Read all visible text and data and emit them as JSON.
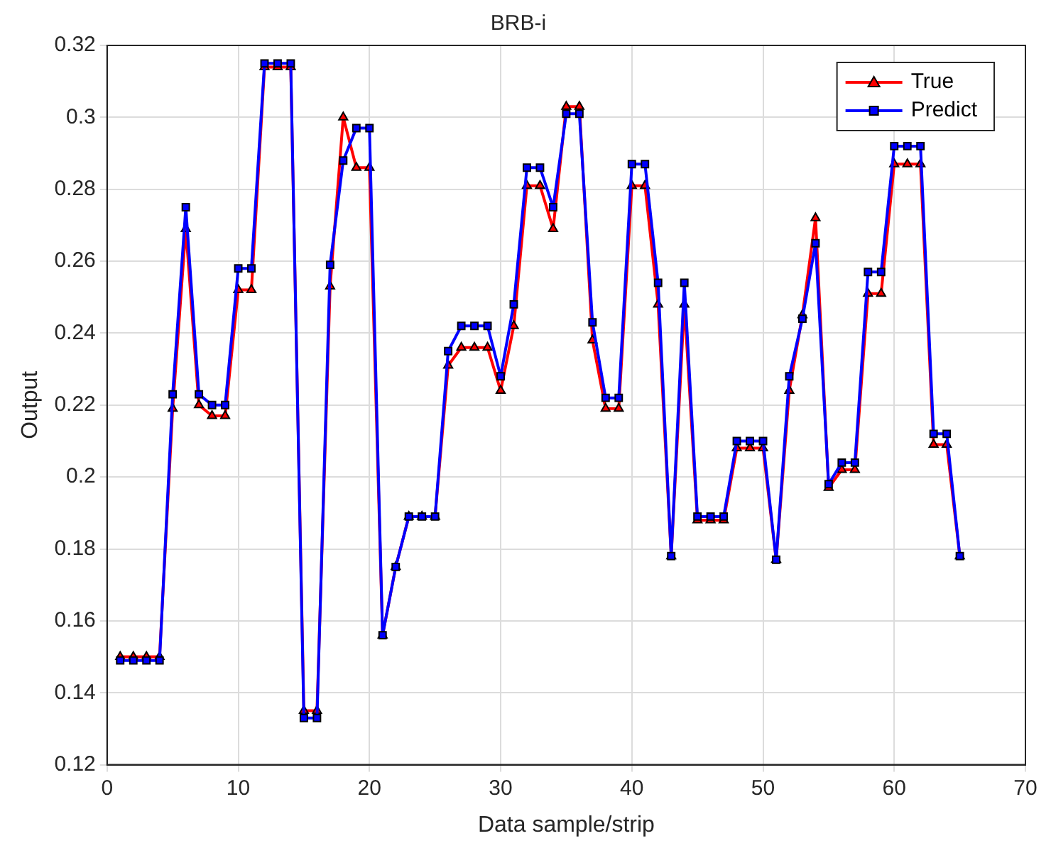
{
  "chart_data": {
    "type": "line",
    "title": "BRB-i",
    "xlabel": "Data sample/strip",
    "ylabel": "Output",
    "x": [
      1,
      2,
      3,
      4,
      5,
      6,
      7,
      8,
      9,
      10,
      11,
      12,
      13,
      14,
      15,
      16,
      17,
      18,
      19,
      20,
      21,
      22,
      23,
      24,
      25,
      26,
      27,
      28,
      29,
      30,
      31,
      32,
      33,
      34,
      35,
      36,
      37,
      38,
      39,
      40,
      41,
      42,
      43,
      44,
      45,
      46,
      47,
      48,
      49,
      50,
      51,
      52,
      53,
      54,
      55,
      56,
      57,
      58,
      59,
      60,
      61,
      62,
      63,
      64,
      65
    ],
    "series": [
      {
        "name": "True",
        "color": "#ff0000",
        "marker": "triangle",
        "values": [
          0.15,
          0.15,
          0.15,
          0.15,
          0.219,
          0.269,
          0.22,
          0.217,
          0.217,
          0.252,
          0.252,
          0.314,
          0.314,
          0.314,
          0.135,
          0.135,
          0.253,
          0.3,
          0.286,
          0.286,
          0.156,
          0.175,
          0.189,
          0.189,
          0.189,
          0.231,
          0.236,
          0.236,
          0.236,
          0.224,
          0.242,
          0.281,
          0.281,
          0.269,
          0.303,
          0.303,
          0.238,
          0.219,
          0.219,
          0.281,
          0.281,
          0.248,
          0.178,
          0.248,
          0.188,
          0.188,
          0.188,
          0.208,
          0.208,
          0.208,
          0.177,
          0.224,
          0.245,
          0.272,
          0.197,
          0.202,
          0.202,
          0.251,
          0.251,
          0.287,
          0.287,
          0.287,
          0.209,
          0.209,
          0.178
        ]
      },
      {
        "name": "Predict",
        "color": "#0000ff",
        "marker": "square",
        "values": [
          0.149,
          0.149,
          0.149,
          0.149,
          0.223,
          0.275,
          0.223,
          0.22,
          0.22,
          0.258,
          0.258,
          0.315,
          0.315,
          0.315,
          0.133,
          0.133,
          0.259,
          0.288,
          0.297,
          0.297,
          0.156,
          0.175,
          0.189,
          0.189,
          0.189,
          0.235,
          0.242,
          0.242,
          0.242,
          0.228,
          0.248,
          0.286,
          0.286,
          0.275,
          0.301,
          0.301,
          0.243,
          0.222,
          0.222,
          0.287,
          0.287,
          0.254,
          0.178,
          0.254,
          0.189,
          0.189,
          0.189,
          0.21,
          0.21,
          0.21,
          0.177,
          0.228,
          0.244,
          0.265,
          0.198,
          0.204,
          0.204,
          0.257,
          0.257,
          0.292,
          0.292,
          0.292,
          0.212,
          0.212,
          0.178
        ]
      }
    ],
    "xlim": [
      0,
      70
    ],
    "xticks": [
      0,
      10,
      20,
      30,
      40,
      50,
      60,
      70
    ],
    "ylim": [
      0.12,
      0.32
    ],
    "yticks": [
      0.12,
      0.14,
      0.16,
      0.18,
      0.2,
      0.22,
      0.24,
      0.26,
      0.28,
      0.3,
      0.32
    ],
    "grid": true,
    "legend": "top right",
    "line_style": "solid"
  }
}
